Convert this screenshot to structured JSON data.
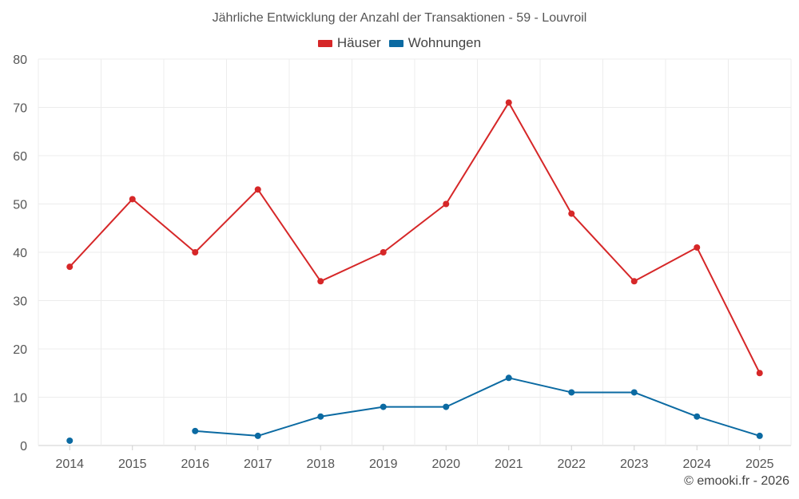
{
  "chart_data": {
    "type": "line",
    "title": "Jährliche Entwicklung der Anzahl der Transaktionen - 59 - Louvroil",
    "xlabel": "",
    "ylabel": "",
    "categories": [
      "2014",
      "2015",
      "2016",
      "2017",
      "2018",
      "2019",
      "2020",
      "2021",
      "2022",
      "2023",
      "2024",
      "2025"
    ],
    "ylim": [
      0,
      80
    ],
    "yticks": [
      0,
      10,
      20,
      30,
      40,
      50,
      60,
      70,
      80
    ],
    "grid": true,
    "legend_position": "top-center",
    "series": [
      {
        "name": "Häuser",
        "color": "#d62728",
        "values": [
          37,
          51,
          40,
          53,
          34,
          40,
          50,
          71,
          48,
          34,
          41,
          15
        ]
      },
      {
        "name": "Wohnungen",
        "color": "#0b6aa2",
        "values": [
          1,
          null,
          3,
          2,
          6,
          8,
          8,
          14,
          11,
          11,
          6,
          2
        ]
      }
    ]
  },
  "footer": {
    "credit": "© emooki.fr - 2026"
  }
}
